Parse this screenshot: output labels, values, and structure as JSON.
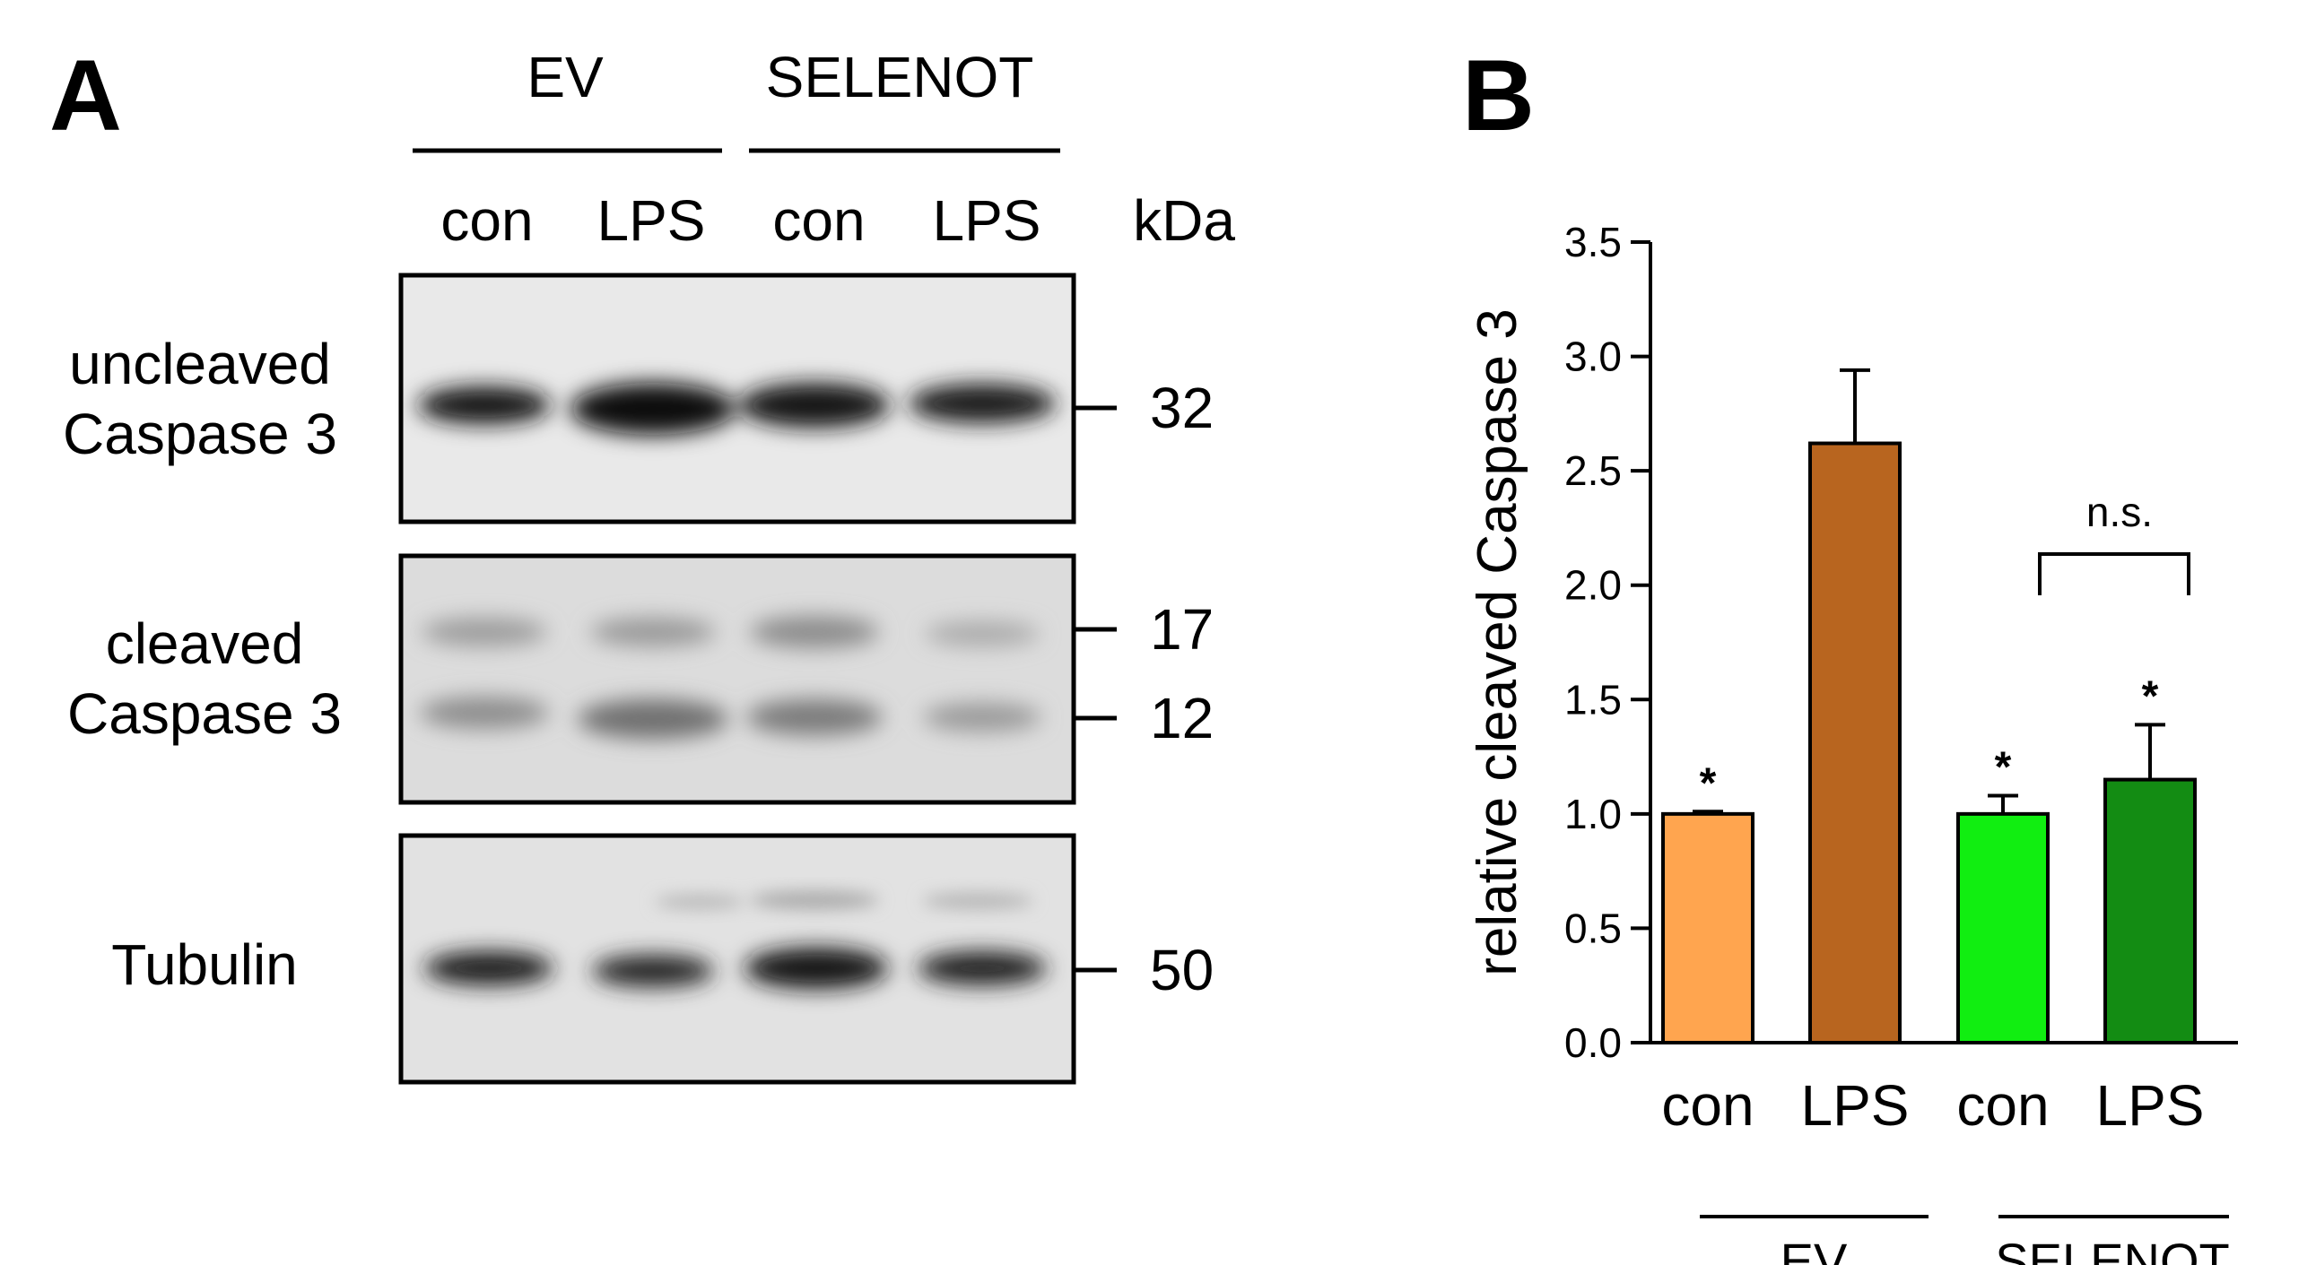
{
  "panelA": {
    "label": "A",
    "groups": [
      "EV",
      "SELENOT"
    ],
    "lanes": [
      "con",
      "LPS",
      "con",
      "LPS"
    ],
    "kda_label": "kDa",
    "blots": [
      {
        "label_lines": [
          "uncleaved",
          "Caspase 3"
        ],
        "markers": [
          "32"
        ]
      },
      {
        "label_lines": [
          "cleaved",
          "Caspase 3"
        ],
        "markers": [
          "17",
          "12"
        ]
      },
      {
        "label_lines": [
          "Tubulin"
        ],
        "markers": [
          "50"
        ]
      }
    ]
  },
  "panelB": {
    "label": "B",
    "significance": "n.s.",
    "groups": [
      "EV",
      "SELENOT"
    ]
  },
  "chart_data": {
    "type": "bar",
    "ylabel": "relative cleaved Caspase 3",
    "ylim": [
      0,
      3.5
    ],
    "yticks": [
      "0.0",
      "0.5",
      "1.0",
      "1.5",
      "2.0",
      "2.5",
      "3.0",
      "3.5"
    ],
    "categories": [
      "con",
      "LPS",
      "con",
      "LPS"
    ],
    "values": [
      1.0,
      2.62,
      1.0,
      1.15
    ],
    "errors": [
      0.01,
      0.32,
      0.08,
      0.24
    ],
    "colors": [
      "#FFA54F",
      "#B8651F",
      "#11EE11",
      "#138C13"
    ],
    "significance_marks": [
      "*",
      "",
      "*",
      "*"
    ]
  }
}
